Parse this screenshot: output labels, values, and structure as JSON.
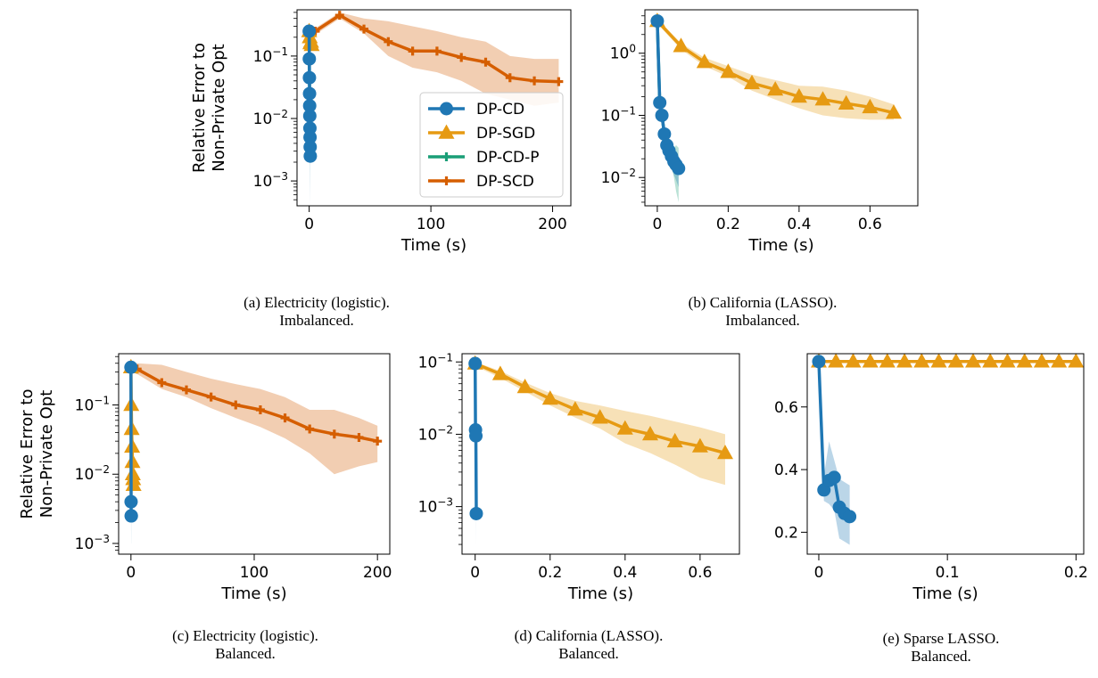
{
  "figure": {
    "captions": [
      {
        "line1": "(a) Electricity (logistic).",
        "line2": "Imbalanced."
      },
      {
        "line1": "(b) California (LASSO).",
        "line2": "Imbalanced."
      },
      {
        "line1": "(c) Electricity (logistic).",
        "line2": "Balanced."
      },
      {
        "line1": "(d) California (LASSO).",
        "line2": "Balanced."
      },
      {
        "line1": "(e) Sparse LASSO.",
        "line2": "Balanced."
      }
    ]
  },
  "colors": {
    "DP-CD": "#1f77b4",
    "DP-SGD": "#e69a12",
    "DP-CD-P": "#1a9e77",
    "DP-SCD": "#d55e00"
  },
  "chart_data": [
    {
      "type": "line",
      "panel": "a",
      "xlabel": "Time (s)",
      "ylabel": [
        "Relative Error to",
        "Non-Private Opt"
      ],
      "yscale": "log",
      "xlim": [
        -10,
        215
      ],
      "ylim": [
        0.0004,
        0.55
      ],
      "xticks": [
        0,
        100,
        200
      ],
      "yticks": [
        0.001,
        0.01,
        0.1
      ],
      "ytick_labels": [
        "10^-3",
        "10^-2",
        "10^-1"
      ],
      "legend": {
        "placement": "lower-right",
        "entries": [
          "DP-CD",
          "DP-SGD",
          "DP-CD-P",
          "DP-SCD"
        ]
      },
      "series": [
        {
          "name": "DP-SCD",
          "marker": "plus",
          "x": [
            0,
            5,
            25,
            45,
            65,
            85,
            105,
            125,
            145,
            165,
            185,
            205
          ],
          "y": [
            0.22,
            0.25,
            0.45,
            0.27,
            0.17,
            0.12,
            0.12,
            0.095,
            0.08,
            0.045,
            0.04,
            0.039
          ],
          "band_low": [
            0.2,
            0.22,
            0.4,
            0.23,
            0.1,
            0.065,
            0.055,
            0.04,
            0.025,
            0.02,
            0.016,
            0.018
          ],
          "band_high": [
            0.25,
            0.28,
            0.5,
            0.4,
            0.36,
            0.3,
            0.25,
            0.2,
            0.17,
            0.1,
            0.09,
            0.09
          ]
        },
        {
          "name": "DP-SGD",
          "marker": "triangle",
          "x": [
            0,
            0.5,
            1,
            1.5,
            2
          ],
          "y": [
            0.25,
            0.2,
            0.16,
            0.17,
            0.15
          ],
          "band_low": [
            0.2,
            0.15,
            0.12,
            0.13,
            0.12
          ],
          "band_high": [
            0.3,
            0.25,
            0.2,
            0.21,
            0.19
          ]
        },
        {
          "name": "DP-CD-P",
          "marker": "plus",
          "x": [
            0,
            0.1,
            0.2,
            0.3,
            0.4,
            0.5,
            0.6,
            0.7,
            0.8
          ],
          "y": [
            0.25,
            0.09,
            0.045,
            0.025,
            0.015,
            0.01,
            0.006,
            0.004,
            0.003
          ],
          "band_low": [
            0.2,
            0.07,
            0.03,
            0.015,
            0.008,
            0.005,
            0.003,
            0.0015,
            0.0008
          ],
          "band_high": [
            0.3,
            0.11,
            0.06,
            0.035,
            0.02,
            0.014,
            0.009,
            0.006,
            0.005
          ]
        },
        {
          "name": "DP-CD",
          "marker": "circle",
          "x": [
            0,
            0.1,
            0.2,
            0.3,
            0.4,
            0.5,
            0.6,
            0.7,
            0.8,
            0.9
          ],
          "y": [
            0.25,
            0.09,
            0.045,
            0.025,
            0.016,
            0.011,
            0.007,
            0.005,
            0.0035,
            0.0025
          ],
          "band_low": [
            0.2,
            0.07,
            0.03,
            0.015,
            0.009,
            0.006,
            0.003,
            0.0015,
            0.0008,
            0.0004
          ],
          "band_high": [
            0.3,
            0.11,
            0.06,
            0.035,
            0.022,
            0.016,
            0.011,
            0.008,
            0.006,
            0.005
          ]
        }
      ]
    },
    {
      "type": "line",
      "panel": "b",
      "xlabel": "Time (s)",
      "ylabel": [],
      "yscale": "log",
      "xlim": [
        -0.035,
        0.735
      ],
      "ylim": [
        0.0035,
        5.0
      ],
      "xticks": [
        0.0,
        0.2,
        0.4,
        0.6
      ],
      "yticks": [
        0.01,
        0.1,
        1
      ],
      "ytick_labels": [
        "10^-2",
        "10^-1",
        "10^0"
      ],
      "series": [
        {
          "name": "DP-SGD",
          "marker": "triangle",
          "x": [
            0,
            0.067,
            0.133,
            0.2,
            0.267,
            0.333,
            0.4,
            0.467,
            0.533,
            0.6,
            0.667
          ],
          "y": [
            3.3,
            1.3,
            0.72,
            0.5,
            0.33,
            0.26,
            0.2,
            0.18,
            0.155,
            0.135,
            0.11
          ],
          "band_low": [
            3.0,
            1.15,
            0.62,
            0.42,
            0.25,
            0.18,
            0.13,
            0.1,
            0.09,
            0.085,
            0.085
          ],
          "band_high": [
            3.6,
            1.45,
            0.85,
            0.62,
            0.45,
            0.37,
            0.3,
            0.29,
            0.25,
            0.2,
            0.15
          ]
        },
        {
          "name": "DP-CD-P",
          "marker": "plus",
          "x": [
            0,
            0.007,
            0.013,
            0.02,
            0.027,
            0.033,
            0.04,
            0.047,
            0.053,
            0.06
          ],
          "y": [
            3.3,
            0.15,
            0.1,
            0.05,
            0.035,
            0.028,
            0.024,
            0.02,
            0.018,
            0.016
          ],
          "band_low": [
            3.0,
            0.13,
            0.08,
            0.04,
            0.025,
            0.02,
            0.015,
            0.01,
            0.006,
            0.004
          ],
          "band_high": [
            3.6,
            0.17,
            0.12,
            0.06,
            0.045,
            0.038,
            0.033,
            0.03,
            0.033,
            0.03
          ]
        },
        {
          "name": "DP-CD",
          "marker": "circle",
          "x": [
            0,
            0.007,
            0.013,
            0.02,
            0.027,
            0.033,
            0.04,
            0.047,
            0.053,
            0.06
          ],
          "y": [
            3.3,
            0.16,
            0.1,
            0.05,
            0.033,
            0.027,
            0.022,
            0.018,
            0.016,
            0.014
          ],
          "band_low": [
            3.0,
            0.14,
            0.085,
            0.04,
            0.025,
            0.02,
            0.015,
            0.011,
            0.009,
            0.007
          ],
          "band_high": [
            3.6,
            0.18,
            0.115,
            0.06,
            0.043,
            0.035,
            0.03,
            0.027,
            0.024,
            0.022
          ]
        }
      ]
    },
    {
      "type": "line",
      "panel": "c",
      "xlabel": "Time (s)",
      "ylabel": [
        "Relative Error to",
        "Non-Private Opt"
      ],
      "yscale": "log",
      "xlim": [
        -10,
        210
      ],
      "ylim": [
        0.0007,
        0.55
      ],
      "xticks": [
        0,
        100,
        200
      ],
      "yticks": [
        0.001,
        0.01,
        0.1
      ],
      "ytick_labels": [
        "10^-3",
        "10^-2",
        "10^-1"
      ],
      "series": [
        {
          "name": "DP-SCD",
          "marker": "plus",
          "x": [
            0,
            5,
            25,
            45,
            65,
            85,
            105,
            125,
            145,
            165,
            185,
            200
          ],
          "y": [
            0.35,
            0.33,
            0.21,
            0.165,
            0.13,
            0.1,
            0.085,
            0.065,
            0.045,
            0.038,
            0.034,
            0.03
          ],
          "band_low": [
            0.3,
            0.28,
            0.17,
            0.13,
            0.09,
            0.065,
            0.048,
            0.033,
            0.02,
            0.01,
            0.013,
            0.015
          ],
          "band_high": [
            0.4,
            0.4,
            0.38,
            0.3,
            0.24,
            0.2,
            0.17,
            0.13,
            0.085,
            0.085,
            0.065,
            0.05
          ]
        },
        {
          "name": "DP-SGD",
          "marker": "triangle",
          "x": [
            0,
            0.3,
            0.6,
            0.9,
            1.2,
            1.5,
            1.8,
            2.1
          ],
          "y": [
            0.35,
            0.1,
            0.045,
            0.025,
            0.015,
            0.01,
            0.0085,
            0.007
          ],
          "band_low": [
            0.3,
            0.08,
            0.035,
            0.019,
            0.011,
            0.007,
            0.006,
            0.005
          ],
          "band_high": [
            0.4,
            0.12,
            0.055,
            0.031,
            0.019,
            0.013,
            0.011,
            0.009
          ]
        },
        {
          "name": "DP-CD",
          "marker": "circle",
          "x": [
            0,
            0.1,
            0.2,
            0.3
          ],
          "y": [
            0.35,
            0.004,
            0.0025,
            0.0025
          ],
          "band_low": [
            0.3,
            0.0015,
            0.001,
            0.001
          ],
          "band_high": [
            0.4,
            0.008,
            0.005,
            0.005
          ]
        }
      ]
    },
    {
      "type": "line",
      "panel": "d",
      "xlabel": "Time (s)",
      "ylabel": [],
      "yscale": "log",
      "xlim": [
        -0.035,
        0.705
      ],
      "ylim": [
        0.00022,
        0.13
      ],
      "xticks": [
        0.0,
        0.2,
        0.4,
        0.6
      ],
      "yticks": [
        0.001,
        0.01,
        0.1
      ],
      "ytick_labels": [
        "10^-3",
        "10^-2",
        "10^-1"
      ],
      "series": [
        {
          "name": "DP-SGD",
          "marker": "triangle",
          "x": [
            0,
            0.067,
            0.133,
            0.2,
            0.267,
            0.333,
            0.4,
            0.467,
            0.533,
            0.6,
            0.667
          ],
          "y": [
            0.095,
            0.068,
            0.045,
            0.031,
            0.022,
            0.017,
            0.012,
            0.01,
            0.008,
            0.0068,
            0.0055
          ],
          "band_low": [
            0.088,
            0.06,
            0.039,
            0.025,
            0.017,
            0.012,
            0.0075,
            0.0055,
            0.0038,
            0.0025,
            0.002
          ],
          "band_high": [
            0.1,
            0.075,
            0.052,
            0.037,
            0.029,
            0.025,
            0.021,
            0.018,
            0.015,
            0.0125,
            0.01
          ]
        },
        {
          "name": "DP-CD",
          "marker": "circle",
          "x": [
            0,
            0.001,
            0.002,
            0.003
          ],
          "y": [
            0.095,
            0.0115,
            0.0095,
            0.0008
          ],
          "band_low": [
            0.088,
            0.008,
            0.006,
            0.0003
          ],
          "band_high": [
            0.1,
            0.016,
            0.013,
            0.0018
          ]
        }
      ]
    },
    {
      "type": "line",
      "panel": "e",
      "xlabel": "Time (s)",
      "ylabel": [],
      "yscale": "linear",
      "xlim": [
        -0.009,
        0.206
      ],
      "ylim": [
        0.13,
        0.77
      ],
      "xticks": [
        0.0,
        0.1,
        0.2
      ],
      "yticks": [
        0.2,
        0.4,
        0.6
      ],
      "ytick_labels": [
        "0.2",
        "0.4",
        "0.6"
      ],
      "series": [
        {
          "name": "DP-SGD",
          "marker": "triangle",
          "x": [
            0,
            0.0133,
            0.0267,
            0.04,
            0.0533,
            0.0667,
            0.08,
            0.0933,
            0.1067,
            0.12,
            0.1333,
            0.1467,
            0.16,
            0.1733,
            0.1867,
            0.2
          ],
          "y": [
            0.745,
            0.745,
            0.745,
            0.745,
            0.745,
            0.745,
            0.745,
            0.745,
            0.745,
            0.745,
            0.745,
            0.745,
            0.745,
            0.745,
            0.745,
            0.745
          ]
        },
        {
          "name": "DP-CD",
          "marker": "circle",
          "x": [
            0,
            0.004,
            0.008,
            0.012,
            0.016,
            0.02,
            0.024
          ],
          "y": [
            0.745,
            0.335,
            0.365,
            0.375,
            0.28,
            0.26,
            0.25
          ],
          "band_low": [
            0.74,
            0.3,
            0.29,
            0.27,
            0.18,
            0.17,
            0.16
          ],
          "band_high": [
            0.75,
            0.38,
            0.49,
            0.43,
            0.37,
            0.36,
            0.35
          ]
        }
      ]
    }
  ]
}
